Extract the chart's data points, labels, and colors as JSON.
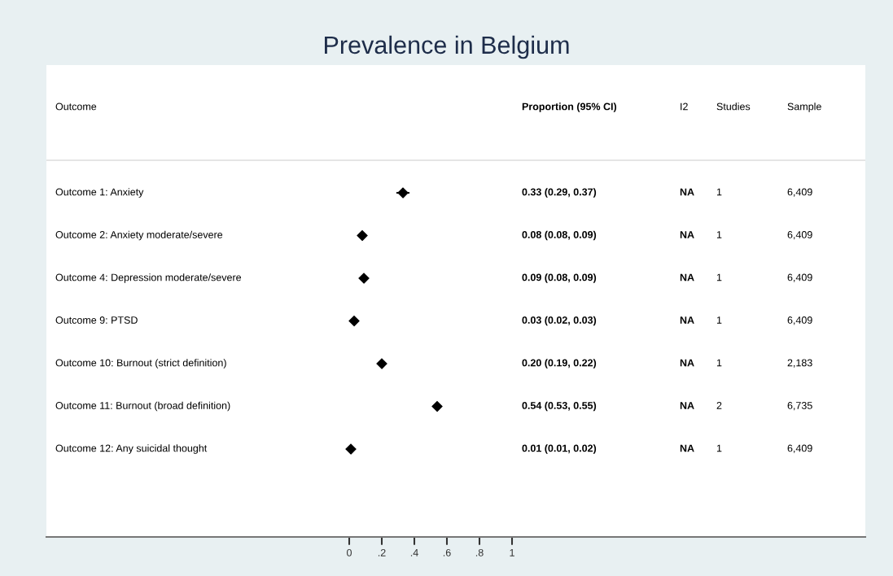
{
  "chart_data": {
    "type": "scatter",
    "orientation": "horizontal",
    "title": "Prevalence in Belgium",
    "categories": [
      "Outcome 1: Anxiety",
      "Outcome 2: Anxiety moderate/severe",
      "Outcome 4: Depression moderate/severe",
      "Outcome 9: PTSD",
      "Outcome 10: Burnout (strict definition)",
      "Outcome 11: Burnout (broad definition)",
      "Outcome 12: Any suicidal thought"
    ],
    "series": [
      {
        "color": "#000000",
        "values": [
          0.33,
          0.08,
          0.09,
          0.03,
          0.2,
          0.54,
          0.01
        ],
        "errors": [
          [
            0.29,
            0.37
          ],
          [
            0.08,
            0.09
          ],
          [
            0.08,
            0.09
          ],
          [
            0.02,
            0.03
          ],
          [
            0.19,
            0.22
          ],
          [
            0.53,
            0.55
          ],
          [
            0.01,
            0.02
          ]
        ]
      }
    ],
    "marker": "diamond",
    "grid": false,
    "legend": false,
    "xlim": [
      -1.86,
      3.17
    ],
    "xticks": [
      0,
      {
        "value": 0.2,
        "label": ".2"
      },
      {
        "value": 0.4,
        "label": ".4"
      },
      {
        "value": 0.6,
        "label": ".6"
      },
      {
        "value": 0.8,
        "label": ".8"
      },
      1
    ],
    "annotations": [
      "Outcome",
      "Proportion (95% CI)",
      "I2",
      "Studies",
      "Sample",
      "0.33 (0.29, 0.37)",
      "NA",
      "1",
      "6,409",
      "0.08 (0.08, 0.09)",
      "NA",
      "1",
      "6,409",
      "0.09 (0.08, 0.09)",
      "NA",
      "1",
      "6,409",
      "0.03 (0.02, 0.03)",
      "NA",
      "1",
      "6,409",
      "0.20 (0.19, 0.22)",
      "NA",
      "1",
      "2,183",
      "0.54 (0.53, 0.55)",
      "NA",
      "2",
      "6,735",
      "0.01 (0.01, 0.02)",
      "NA",
      "1",
      "6,409"
    ]
  }
}
